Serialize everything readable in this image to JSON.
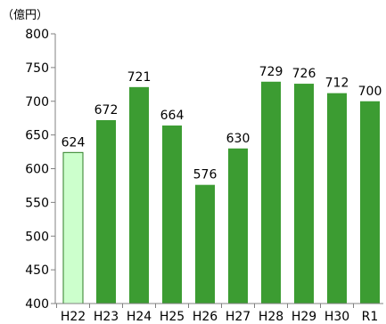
{
  "chart_data": {
    "type": "bar",
    "unit_label": "（億円）",
    "categories": [
      "H22",
      "H23",
      "H24",
      "H25",
      "H26",
      "H27",
      "H28",
      "H29",
      "H30",
      "R1"
    ],
    "values": [
      624,
      672,
      721,
      664,
      576,
      630,
      729,
      726,
      712,
      700
    ],
    "data_labels": [
      "624",
      "672",
      "721",
      "664",
      "576",
      "630",
      "729",
      "726",
      "712",
      "700"
    ],
    "ylim": [
      400,
      800
    ],
    "yticks": [
      400,
      450,
      500,
      550,
      600,
      650,
      700,
      750,
      800
    ],
    "grid": false,
    "legend": "none",
    "highlight_index": 0,
    "colors": {
      "bar": "#3c9c32",
      "bar_highlight_fill": "#ccffcc",
      "bar_highlight_stroke": "#2e7d25",
      "axis": "#808080"
    }
  }
}
